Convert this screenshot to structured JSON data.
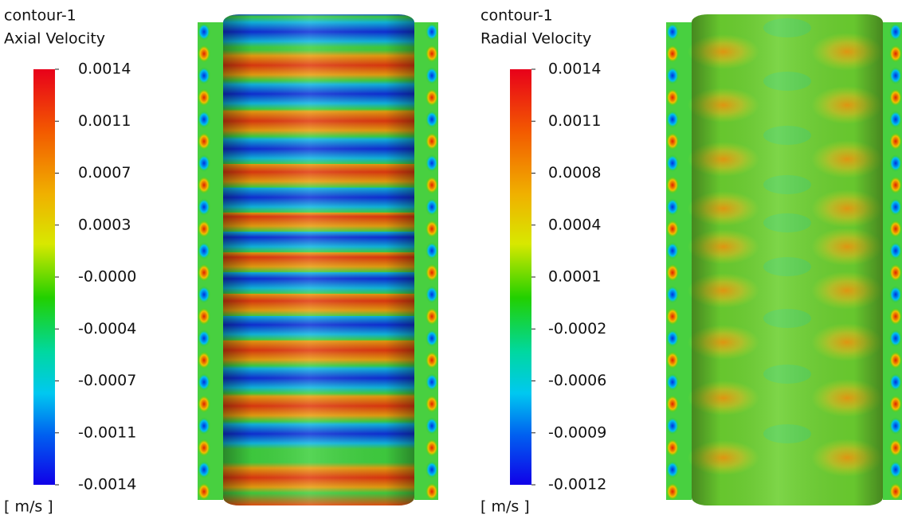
{
  "panels": [
    {
      "title": "contour-1",
      "variable": "Axial Velocity",
      "legend_labels": [
        "0.0014",
        "0.0011",
        "0.0007",
        "0.0003",
        "-0.0000",
        "-0.0004",
        "-0.0007",
        "-0.0011",
        "-0.0014"
      ],
      "unit": "[ m/s ]"
    },
    {
      "title": "contour-1",
      "variable": "Radial Velocity",
      "legend_labels": [
        "0.0014",
        "0.0011",
        "0.0008",
        "0.0004",
        "0.0001",
        "-0.0002",
        "-0.0006",
        "-0.0009",
        "-0.0012"
      ],
      "unit": "[ m/s ]"
    }
  ]
}
